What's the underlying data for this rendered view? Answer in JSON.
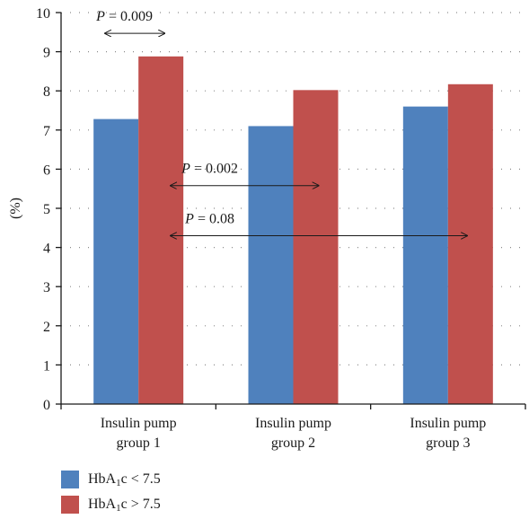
{
  "chart_data": {
    "type": "bar",
    "categories": [
      [
        "Insulin pump",
        "group 1"
      ],
      [
        "Insulin pump",
        "group 2"
      ],
      [
        "Insulin pump",
        "group 3"
      ]
    ],
    "series": [
      {
        "name": "HbA1c < 7.5",
        "legend_base": "HbA",
        "legend_sub": "1",
        "legend_rest": "c < 7.5",
        "color": "#4f81bd",
        "values": [
          7.28,
          7.1,
          7.6
        ]
      },
      {
        "name": "HbA1c > 7.5",
        "legend_base": "HbA",
        "legend_sub": "1",
        "legend_rest": "c > 7.5",
        "color": "#c0504d",
        "values": [
          8.88,
          8.02,
          8.17
        ]
      }
    ],
    "ylabel": "(%)",
    "ylim": [
      0,
      10
    ],
    "yticks": [
      "0",
      "1",
      "2",
      "3",
      "4",
      "5",
      "6",
      "7",
      "8",
      "9",
      "10"
    ],
    "grid": "dotted horizontal",
    "legend_position": "bottom-left",
    "annotations": [
      {
        "label": "P",
        "text": " = 0.009",
        "y": 9.47,
        "from": "group 1 HbA1c < 7.5",
        "to": "group 1 HbA1c > 7.5"
      },
      {
        "label": "P",
        "text": " = 0.002",
        "y": 5.58,
        "from": "group 1 HbA1c > 7.5",
        "to": "group 2 HbA1c > 7.5"
      },
      {
        "label": "P",
        "text": " = 0.08",
        "y": 4.3,
        "from": "group 1 HbA1c > 7.5",
        "to": "group 3 HbA1c > 7.5"
      }
    ]
  }
}
